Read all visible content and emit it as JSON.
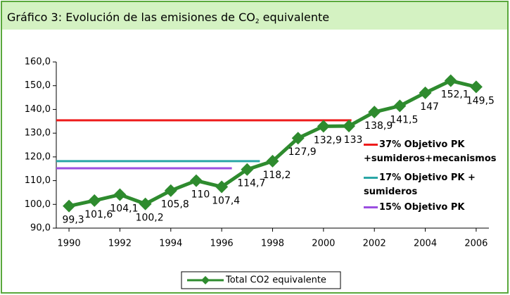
{
  "chart_data": {
    "type": "line",
    "title": {
      "main": "Gráfico 3: Evolución de las emisiones de CO",
      "sub": "2",
      "end": " equivalente"
    },
    "x": [
      1990,
      1991,
      1992,
      1993,
      1994,
      1995,
      1996,
      1997,
      1998,
      1999,
      2000,
      2001,
      2002,
      2003,
      2004,
      2005,
      2006
    ],
    "xlim": [
      1989.5,
      2006.5
    ],
    "xticks": [
      1990,
      1992,
      1994,
      1996,
      1998,
      2000,
      2002,
      2004,
      2006
    ],
    "ylim": [
      90,
      160
    ],
    "yticks": [
      {
        "value": 90,
        "label": "90,0"
      },
      {
        "value": 100,
        "label": "100,0"
      },
      {
        "value": 110,
        "label": "110,0"
      },
      {
        "value": 120,
        "label": "120,0"
      },
      {
        "value": 130,
        "label": "130,0"
      },
      {
        "value": 140,
        "label": "140,0"
      },
      {
        "value": 150,
        "label": "150,0"
      },
      {
        "value": 160,
        "label": "160,0"
      }
    ],
    "series": [
      {
        "name": "Total CO2 equivalente",
        "color": "#2e8b2e",
        "values": [
          99.3,
          101.6,
          104.1,
          100.2,
          105.8,
          110,
          107.4,
          114.7,
          118.2,
          127.9,
          132.9,
          133,
          138.9,
          141.5,
          147,
          152.1,
          149.5
        ],
        "value_labels": [
          "99,3",
          "101,6",
          "104,1",
          "100,2",
          "105,8",
          "110",
          "107,4",
          "114,7",
          "118,2",
          "127,9",
          "132,9",
          "133",
          "138,9",
          "141,5",
          "147",
          "152,1",
          "149,5"
        ]
      }
    ],
    "reference_lines": [
      {
        "name": "37% Objetivo PK +sumideros+mecanismos",
        "color": "#ee1c1c",
        "value": 135.4,
        "x_end": 2001.1
      },
      {
        "name": "17% Objetivo PK + sumideros",
        "color": "#2aa6a6",
        "value": 118.2,
        "x_end": 1997.5
      },
      {
        "name": "15% Objetivo PK",
        "color": "#9b4fe0",
        "value": 115.2,
        "x_end": 1996.4
      }
    ]
  }
}
